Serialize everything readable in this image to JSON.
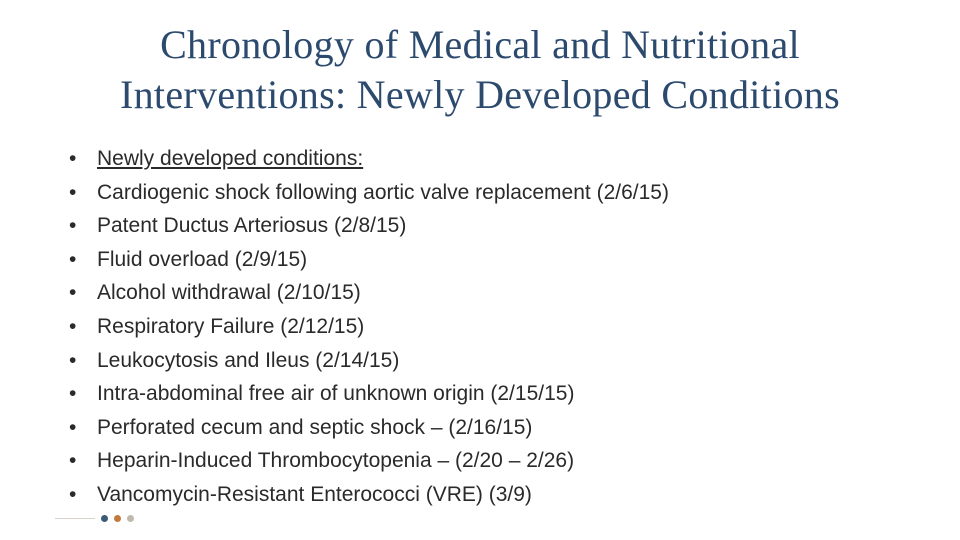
{
  "title": "Chronology of Medical and Nutritional Interventions: Newly Developed Conditions",
  "title_color": "#2c4a6e",
  "title_fontsize": 40,
  "title_font": "Garamond, serif",
  "body_fontsize": 21,
  "body_color": "#2a2a2a",
  "background_color": "#ffffff",
  "bullets": {
    "heading": "Newly developed conditions:",
    "items": [
      "Cardiogenic shock following aortic valve replacement (2/6/15)",
      "Patent Ductus Arteriosus (2/8/15)",
      "Fluid overload (2/9/15)",
      "Alcohol withdrawal (2/10/15)",
      "Respiratory Failure (2/12/15)",
      "Leukocytosis and Ileus (2/14/15)",
      "Intra-abdominal free air of unknown origin (2/15/15)",
      "Perforated cecum and septic shock – (2/16/15)",
      "Heparin-Induced Thrombocytopenia – (2/20 – 2/26)",
      "Vancomycin-Resistant Enterococci (VRE) (3/9)"
    ]
  },
  "accent": {
    "dot_colors": [
      "#3c5a7a",
      "#c27a3e",
      "#bfb9ae"
    ],
    "line_color": "#d8d4cc"
  }
}
